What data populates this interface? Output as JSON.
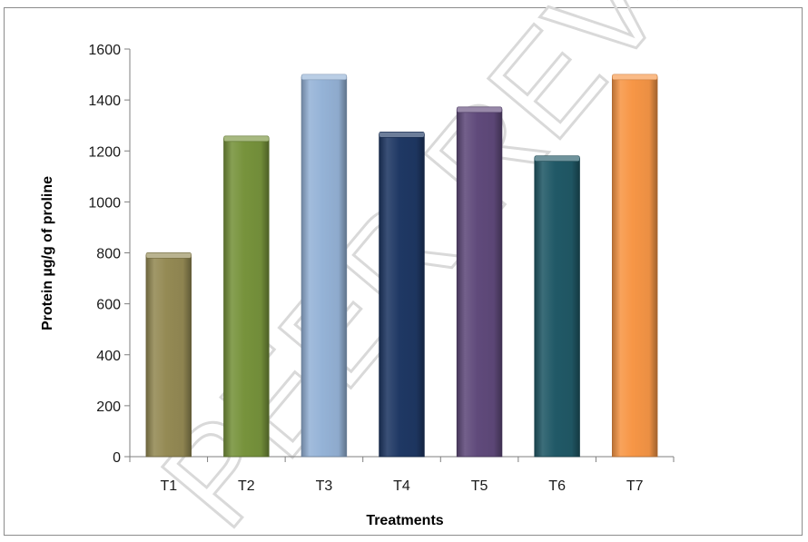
{
  "chart_data": {
    "type": "bar",
    "categories": [
      "T1",
      "T2",
      "T3",
      "T4",
      "T5",
      "T6",
      "T7"
    ],
    "values": [
      790,
      1248,
      1490,
      1264,
      1362,
      1170,
      1490
    ],
    "colors": [
      "#948a54",
      "#77933c",
      "#95b3d7",
      "#1f3864",
      "#604a7b",
      "#215967",
      "#f79646"
    ],
    "xlabel": "Treatments",
    "ylabel": "Protein µg/g of proline",
    "ylim": [
      0,
      1600
    ],
    "yticks": [
      0,
      200,
      400,
      600,
      800,
      1000,
      1200,
      1400,
      1600
    ],
    "grid": false,
    "legend": "none",
    "watermark": "PEER REVIEW"
  }
}
